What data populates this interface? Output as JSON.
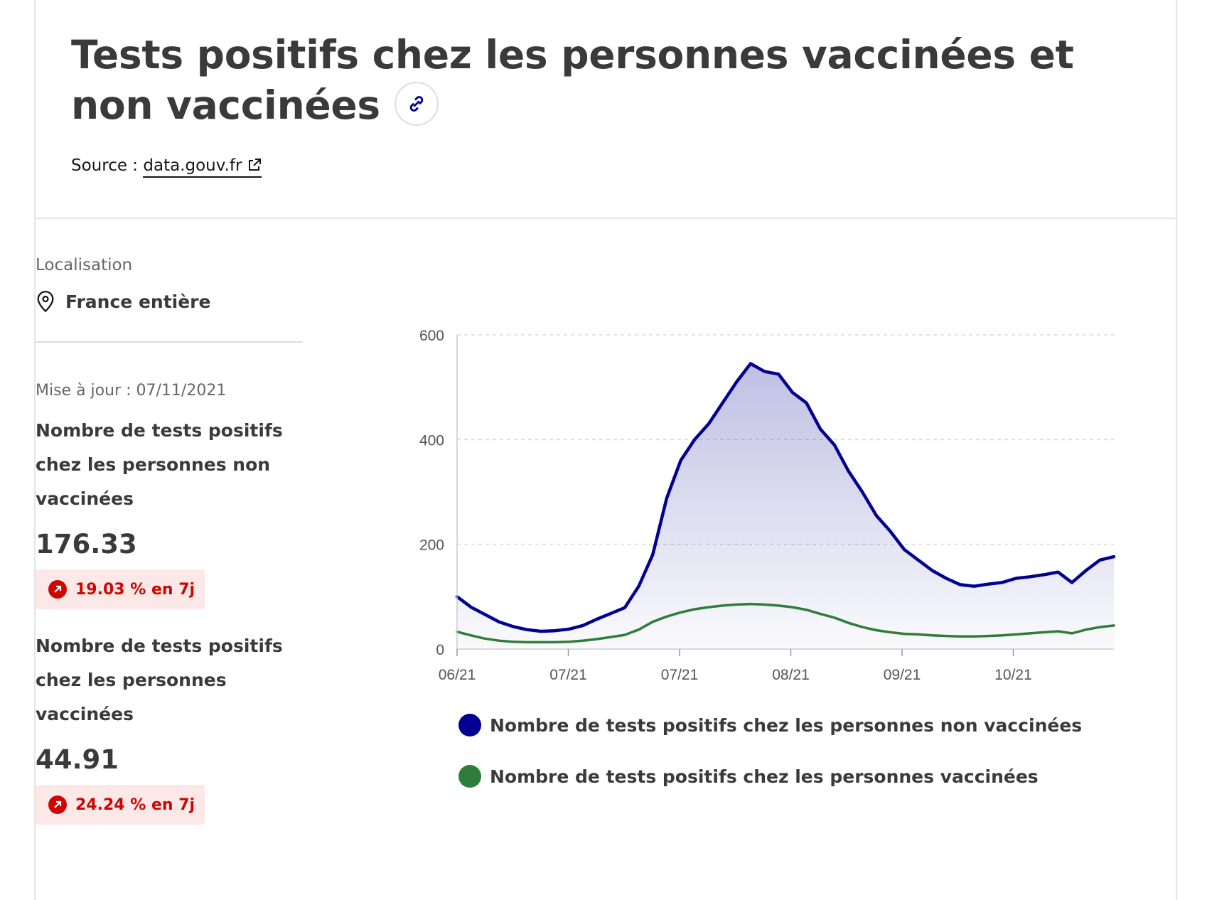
{
  "header": {
    "title": "Tests positifs chez les personnes vaccinées et non vaccinées",
    "source_prefix": "Source : ",
    "source_link": "data.gouv.fr"
  },
  "icons": {
    "link": "link-icon",
    "external": "external-link-icon",
    "location": "location-pin-icon",
    "trend": "arrow-up-right-icon"
  },
  "colors": {
    "non_vaccinated": "#000091",
    "vaccinated": "#2e7d3a",
    "badge_bg": "#fde8e8",
    "badge_text": "#ce0500"
  },
  "sidebar": {
    "location_label": "Localisation",
    "location_value": "France entière",
    "update": "Mise à jour : 07/11/2021",
    "kpis": [
      {
        "label": "Nombre de tests positifs chez les personnes non vaccinées",
        "value": "176.33",
        "trend": "19.03 % en 7j"
      },
      {
        "label": "Nombre de tests positifs chez les personnes vaccinées",
        "value": "44.91",
        "trend": "24.24 % en 7j"
      }
    ]
  },
  "chart_data": {
    "type": "area",
    "ylim": [
      0,
      600
    ],
    "yticks": [
      0,
      200,
      400,
      600
    ],
    "xticks": [
      "06/21",
      "07/21",
      "07/21",
      "08/21",
      "09/21",
      "10/21"
    ],
    "grid": true,
    "legend_position": "bottom",
    "series": [
      {
        "name": "Nombre de tests positifs chez les personnes non vaccinées",
        "color": "#000091",
        "fill": true,
        "values": [
          100,
          80,
          66,
          52,
          43,
          37,
          34,
          35,
          38,
          45,
          57,
          68,
          79,
          120,
          180,
          288,
          360,
          400,
          430,
          470,
          510,
          545,
          530,
          525,
          490,
          470,
          420,
          390,
          340,
          300,
          255,
          225,
          190,
          170,
          150,
          135,
          123,
          120,
          124,
          127,
          135,
          138,
          142,
          147,
          127,
          150,
          170,
          176.33
        ]
      },
      {
        "name": "Nombre de tests positifs chez les personnes vaccinées",
        "color": "#2e7d3a",
        "values": [
          33,
          26,
          20,
          16,
          14,
          13,
          13,
          13,
          14,
          16,
          19,
          23,
          27,
          37,
          52,
          62,
          70,
          76,
          80,
          83,
          85,
          86,
          85,
          83,
          80,
          75,
          67,
          60,
          50,
          42,
          36,
          32,
          29,
          28,
          26,
          25,
          24,
          24,
          25,
          26,
          28,
          30,
          32,
          34,
          30,
          37,
          42,
          44.91
        ]
      }
    ]
  }
}
